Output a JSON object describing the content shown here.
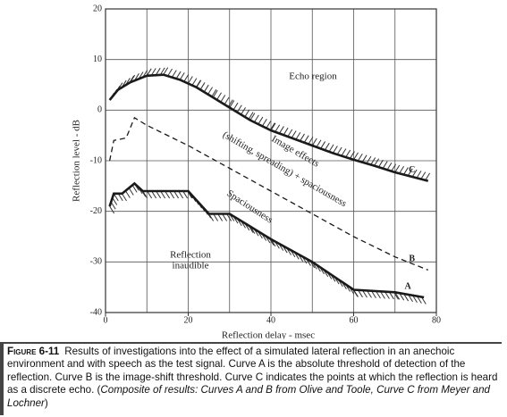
{
  "chart_data": {
    "type": "line",
    "xlabel": "Reflection delay - msec",
    "ylabel": "Reflection level - dB",
    "xlim": [
      0,
      80
    ],
    "xticks": [
      0,
      20,
      40,
      60,
      80
    ],
    "xgrid": [
      0,
      10,
      20,
      30,
      40,
      50,
      60,
      70,
      80
    ],
    "ylim": [
      -40,
      20
    ],
    "yticks": [
      20,
      10,
      0,
      -10,
      -20,
      -30,
      -40
    ],
    "grid": true,
    "series": [
      {
        "name": "A",
        "color": "#1a1a1a",
        "dash": false,
        "hatch": "below",
        "x": [
          1,
          2,
          4,
          7,
          9,
          20,
          25,
          30,
          35,
          40,
          50,
          60,
          70,
          77
        ],
        "values": [
          -19,
          -16.5,
          -16.5,
          -14.5,
          -16,
          -16,
          -20.5,
          -20.5,
          -23,
          -25.5,
          -30,
          -35.5,
          -36,
          -37
        ]
      },
      {
        "name": "B",
        "color": "#1a1a1a",
        "dash": true,
        "hatch": "none",
        "x": [
          1,
          2,
          5,
          7,
          10,
          20,
          30,
          40,
          50,
          60,
          70,
          78
        ],
        "values": [
          -10,
          -6,
          -5.5,
          -1.5,
          -3,
          -7,
          -11.5,
          -16,
          -20.5,
          -25,
          -29,
          -31.6
        ]
      },
      {
        "name": "C",
        "color": "#1a1a1a",
        "dash": false,
        "hatch": "above",
        "x": [
          1,
          3,
          6,
          10,
          14,
          18,
          22,
          26,
          30,
          35,
          40,
          45,
          50,
          55,
          60,
          65,
          70,
          78
        ],
        "values": [
          2,
          4,
          5.5,
          6.8,
          7,
          6,
          4.5,
          2.5,
          0.5,
          -2,
          -4,
          -5.5,
          -7,
          -8.5,
          -9.8,
          -11,
          -12.3,
          -14
        ]
      }
    ],
    "annotations": [
      "Echo region",
      "Image effects",
      "(shifting, spreading) + spaciousness",
      "Spaciousness",
      "Reflection",
      "inaudible"
    ]
  },
  "caption": {
    "label": "Figure 6-11",
    "text": "Results of investigations into the effect of a simulated lateral reflection in an anechoic environment and with speech as the test signal. Curve A is the absolute threshold of detection of the reflection. Curve B is the image-shift threshold. Curve C indicates the points at which the reflection is heard as a discrete echo. (",
    "source": "Composite of results: Curves A and B from Olive and Toole, Curve C from Meyer and Lochner",
    "close": ")"
  }
}
